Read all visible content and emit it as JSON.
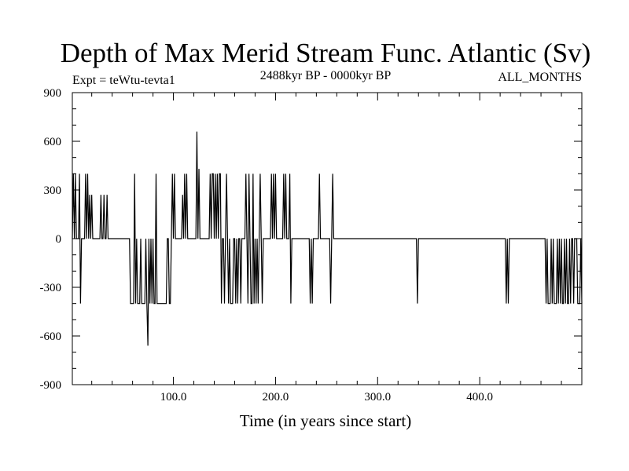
{
  "chart_data": {
    "type": "line",
    "title": "Depth of Max Merid Stream Func. Atlantic (Sv)",
    "subtitle_left": "Expt = teWtu-tevta1",
    "subtitle_center": "2488kyr BP - 0000kyr BP",
    "subtitle_right": "ALL_MONTHS",
    "xlabel": "Time (in years since start)",
    "ylabel": "",
    "xlim": [
      1,
      500
    ],
    "ylim": [
      -900,
      900
    ],
    "xticks": [
      100,
      200,
      300,
      400
    ],
    "xtick_labels": [
      "100.0",
      "200.0",
      "300.0",
      "400.0"
    ],
    "yticks": [
      900,
      600,
      300,
      0,
      -300,
      -600,
      -900
    ],
    "ytick_labels": [
      "900",
      "600",
      "300",
      "0",
      "-300",
      "-600",
      "-900"
    ],
    "grid": false,
    "series": [
      {
        "values": [
          0,
          400,
          0,
          400,
          0,
          0,
          0,
          400,
          -400,
          0,
          0,
          0,
          0,
          400,
          0,
          400,
          0,
          270,
          0,
          270,
          0,
          0,
          0,
          0,
          0,
          0,
          0,
          0,
          270,
          0,
          0,
          270,
          0,
          0,
          270,
          0,
          0,
          0,
          0,
          0,
          0,
          0,
          0,
          0,
          0,
          0,
          0,
          0,
          0,
          0,
          0,
          0,
          0,
          0,
          0,
          0,
          0,
          -400,
          -400,
          -400,
          -400,
          400,
          -400,
          0,
          -400,
          -400,
          -400,
          0,
          -400,
          -400,
          -400,
          -400,
          0,
          -400,
          -660,
          0,
          -400,
          0,
          -400,
          0,
          -400,
          -400,
          400,
          -400,
          -400,
          -400,
          -400,
          -400,
          -400,
          -400,
          -400,
          -400,
          -400,
          0,
          0,
          -400,
          -400,
          0,
          400,
          0,
          400,
          0,
          0,
          0,
          0,
          0,
          0,
          0,
          270,
          0,
          400,
          0,
          400,
          0,
          0,
          0,
          0,
          0,
          0,
          0,
          0,
          0,
          660,
          0,
          430,
          0,
          0,
          0,
          0,
          0,
          0,
          0,
          0,
          0,
          0,
          400,
          0,
          400,
          400,
          0,
          400,
          0,
          400,
          0,
          400,
          400,
          -400,
          0,
          0,
          -400,
          0,
          400,
          0,
          -400,
          0,
          -400,
          -400,
          -400,
          0,
          0,
          -400,
          0,
          -400,
          0,
          0,
          -400,
          0,
          0,
          0,
          0,
          400,
          0,
          -400,
          400,
          0,
          -400,
          -400,
          400,
          -400,
          0,
          -400,
          0,
          -400,
          0,
          400,
          0,
          -400,
          0,
          0,
          0,
          0,
          0,
          0,
          0,
          0,
          400,
          0,
          400,
          0,
          400,
          0,
          0,
          0,
          0,
          0,
          0,
          0,
          400,
          0,
          400,
          0,
          0,
          0,
          400,
          -400,
          0,
          0,
          0,
          0,
          0,
          0,
          0,
          0,
          0,
          0,
          0,
          0,
          0,
          0,
          0,
          0,
          0,
          0,
          -400,
          0,
          -400,
          0,
          0,
          0,
          0,
          0,
          0,
          400,
          0,
          0,
          0,
          0,
          0,
          0,
          0,
          0,
          0,
          0,
          -400,
          0,
          400,
          0,
          0,
          0,
          0,
          0,
          0,
          0,
          0,
          0,
          0,
          0,
          0,
          0,
          0,
          0,
          0,
          0,
          0,
          0,
          0,
          0,
          0,
          0,
          0,
          0,
          0,
          0,
          0,
          0,
          0,
          0,
          0,
          0,
          0,
          0,
          0,
          0,
          0,
          0,
          0,
          0,
          0,
          0,
          0,
          0,
          0,
          0,
          0,
          0,
          0,
          0,
          0,
          0,
          0,
          0,
          0,
          0,
          0,
          0,
          0,
          0,
          0,
          0,
          0,
          0,
          0,
          0,
          0,
          0,
          0,
          0,
          0,
          0,
          0,
          0,
          0,
          0,
          0,
          0,
          0,
          0,
          0,
          -400,
          0,
          0,
          0,
          0,
          0,
          0,
          0,
          0,
          0,
          0,
          0,
          0,
          0,
          0,
          0,
          0,
          0,
          0,
          0,
          0,
          0,
          0,
          0,
          0,
          0,
          0,
          0,
          0,
          0,
          0,
          0,
          0,
          0,
          0,
          0,
          0,
          0,
          0,
          0,
          0,
          0,
          0,
          0,
          0,
          0,
          0,
          0,
          0,
          0,
          0,
          0,
          0,
          0,
          0,
          0,
          0,
          0,
          0,
          0,
          0,
          0,
          0,
          0,
          0,
          0,
          0,
          0,
          0,
          0,
          0,
          0,
          0,
          0,
          0,
          0,
          0,
          0,
          0,
          0,
          0,
          0,
          0,
          0,
          0,
          0,
          0,
          -400,
          0,
          -400,
          0,
          0,
          0,
          0,
          0,
          0,
          0,
          0,
          0,
          0,
          0,
          0,
          0,
          0,
          0,
          0,
          0,
          0,
          0,
          0,
          0,
          0,
          0,
          0,
          0,
          0,
          0,
          0,
          0,
          0,
          0,
          0,
          0,
          0,
          0,
          0,
          -400,
          0,
          -400,
          -400,
          -400,
          0,
          -400,
          0,
          -400,
          -400,
          -400,
          0,
          -400,
          0,
          -400,
          0,
          -400,
          -400,
          0,
          -400,
          0,
          -400,
          -400,
          0,
          -400,
          0,
          0,
          -400,
          0,
          0,
          0,
          -400,
          -400,
          -400,
          0,
          -400
        ]
      }
    ]
  }
}
